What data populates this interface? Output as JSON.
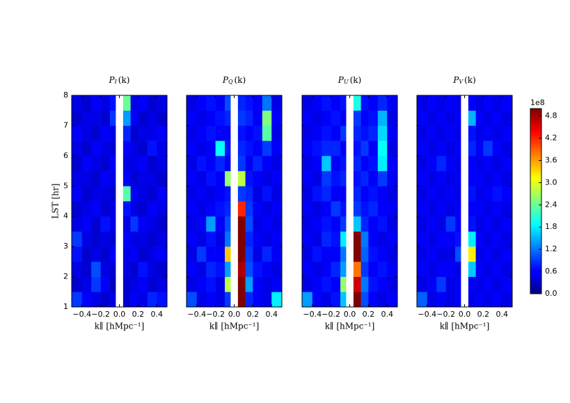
{
  "chart_data": {
    "type": "heatmap",
    "ylabel": "LST [hr]",
    "xlabel": "k∥ [hMpc⁻¹]",
    "colormap": "jet",
    "xlim": [
      -0.51,
      0.51
    ],
    "xticks": [
      {
        "value": -0.4,
        "label": "−0.4"
      },
      {
        "value": -0.2,
        "label": "−0.2"
      },
      {
        "value": 0,
        "label": "0.0"
      },
      0.2,
      0.4
    ],
    "ylim": [
      1,
      8
    ],
    "yticks": [
      1,
      2,
      3,
      4,
      5,
      6,
      7,
      8
    ],
    "xbins": [
      -0.51,
      -0.4,
      -0.3,
      -0.2,
      -0.1,
      -0.04,
      0.04,
      0.12,
      0.2,
      0.3,
      0.4,
      0.51
    ],
    "ybins": [
      1,
      1.5,
      2,
      2.5,
      3,
      3.5,
      4,
      4.5,
      5,
      5.5,
      6,
      6.5,
      7,
      7.5,
      8
    ],
    "zlim": [
      0,
      5.0
    ],
    "zticks": [
      {
        "value": 0,
        "label": "0.0"
      },
      0.6,
      1.2,
      1.8,
      2.4,
      {
        "value": 3,
        "label": "3.0"
      },
      3.6,
      4.2,
      4.8
    ],
    "z_offset_label": "1e8",
    "panels": [
      {
        "title": {
          "symbol": "P",
          "subscript": "I",
          "arg": "(k)"
        },
        "z": [
          [
            0.9,
            0.6,
            0.5,
            0.4,
            0.5,
            null,
            0.4,
            0.6,
            0.5,
            0.8,
            0.7
          ],
          [
            0.4,
            0.5,
            0.9,
            0.6,
            0.3,
            null,
            0.4,
            0.5,
            0.6,
            0.4,
            0.5
          ],
          [
            0.5,
            0.4,
            1.0,
            0.5,
            0.4,
            null,
            0.5,
            0.4,
            0.7,
            0.5,
            0.4
          ],
          [
            0.7,
            0.4,
            0.5,
            0.4,
            0.6,
            null,
            0.5,
            0.6,
            0.4,
            0.5,
            0.6
          ],
          [
            0.9,
            0.5,
            0.4,
            0.5,
            0.4,
            null,
            0.6,
            0.5,
            0.5,
            0.4,
            0.5
          ],
          [
            0.5,
            0.6,
            0.4,
            0.7,
            0.5,
            null,
            0.5,
            0.9,
            0.6,
            0.5,
            0.4
          ],
          [
            0.4,
            0.5,
            0.6,
            0.4,
            0.5,
            null,
            0.7,
            0.5,
            0.4,
            0.6,
            0.5
          ],
          [
            0.6,
            0.4,
            0.5,
            0.5,
            0.4,
            null,
            2.3,
            0.6,
            0.5,
            0.4,
            0.6
          ],
          [
            0.5,
            0.5,
            0.4,
            0.6,
            0.5,
            null,
            0.6,
            0.4,
            0.5,
            0.5,
            0.4
          ],
          [
            0.4,
            0.6,
            0.5,
            0.4,
            0.6,
            null,
            0.5,
            0.5,
            0.6,
            0.4,
            0.5
          ],
          [
            0.5,
            0.4,
            0.6,
            0.5,
            0.4,
            null,
            0.6,
            0.5,
            0.4,
            0.7,
            0.5
          ],
          [
            0.6,
            0.5,
            0.4,
            0.6,
            0.5,
            null,
            0.8,
            0.4,
            0.5,
            0.5,
            0.6
          ],
          [
            0.4,
            0.5,
            0.5,
            0.4,
            0.9,
            null,
            1.4,
            0.6,
            0.4,
            0.5,
            0.4
          ],
          [
            0.5,
            0.4,
            0.6,
            0.5,
            0.7,
            null,
            2.4,
            0.5,
            0.6,
            0.4,
            0.5
          ]
        ]
      },
      {
        "title": {
          "symbol": "P",
          "subscript": "Q",
          "arg": "(k)"
        },
        "z": [
          [
            1.0,
            0.5,
            0.6,
            0.5,
            0.9,
            null,
            5.0,
            0.8,
            0.6,
            0.5,
            1.8
          ],
          [
            0.5,
            0.6,
            0.7,
            0.5,
            2.8,
            null,
            5.0,
            1.4,
            0.6,
            0.5,
            0.6
          ],
          [
            0.6,
            0.5,
            0.8,
            0.7,
            1.4,
            null,
            4.8,
            1.0,
            0.7,
            0.6,
            0.5
          ],
          [
            0.5,
            0.9,
            0.6,
            0.6,
            3.4,
            null,
            5.0,
            0.9,
            0.5,
            0.8,
            0.6
          ],
          [
            0.6,
            0.5,
            0.7,
            0.5,
            1.2,
            null,
            5.0,
            0.8,
            0.6,
            0.5,
            0.6
          ],
          [
            0.5,
            0.6,
            1.4,
            0.6,
            1.0,
            null,
            5.0,
            1.0,
            0.5,
            0.6,
            0.5
          ],
          [
            0.6,
            0.5,
            0.6,
            0.7,
            0.8,
            null,
            4.2,
            0.9,
            0.6,
            0.5,
            0.6
          ],
          [
            0.5,
            0.6,
            0.5,
            0.6,
            0.7,
            null,
            0.9,
            0.8,
            0.5,
            0.7,
            0.5
          ],
          [
            0.6,
            0.5,
            0.7,
            0.6,
            2.6,
            null,
            2.8,
            0.7,
            0.6,
            0.5,
            0.6
          ],
          [
            0.5,
            0.7,
            0.6,
            0.8,
            0.6,
            null,
            0.9,
            0.6,
            0.8,
            0.6,
            0.5
          ],
          [
            0.6,
            0.5,
            0.6,
            1.9,
            0.7,
            null,
            0.8,
            0.7,
            0.6,
            0.9,
            0.6
          ],
          [
            0.5,
            0.6,
            0.7,
            0.6,
            0.6,
            null,
            0.7,
            0.6,
            0.7,
            2.3,
            0.5
          ],
          [
            0.6,
            0.5,
            0.6,
            0.7,
            0.8,
            null,
            0.9,
            0.8,
            0.6,
            2.5,
            0.6
          ],
          [
            0.5,
            0.6,
            0.7,
            0.6,
            1.0,
            null,
            0.8,
            0.7,
            0.6,
            1.2,
            0.5
          ]
        ]
      },
      {
        "title": {
          "symbol": "P",
          "subscript": "U",
          "arg": "(k)"
        },
        "z": [
          [
            1.4,
            0.6,
            0.5,
            0.7,
            1.6,
            null,
            5.0,
            1.0,
            0.6,
            0.5,
            0.6
          ],
          [
            0.5,
            0.6,
            0.7,
            0.6,
            2.6,
            null,
            4.6,
            1.2,
            0.7,
            0.6,
            0.5
          ],
          [
            0.6,
            0.5,
            0.6,
            0.8,
            1.4,
            null,
            3.8,
            0.9,
            0.6,
            0.7,
            0.6
          ],
          [
            0.5,
            0.7,
            0.6,
            0.6,
            1.2,
            null,
            5.0,
            1.1,
            0.7,
            0.6,
            0.5
          ],
          [
            0.6,
            0.5,
            0.8,
            0.7,
            1.8,
            null,
            5.0,
            1.2,
            0.6,
            0.5,
            0.6
          ],
          [
            0.5,
            0.6,
            0.7,
            0.6,
            0.9,
            null,
            1.6,
            0.8,
            0.6,
            0.7,
            0.5
          ],
          [
            0.6,
            0.5,
            0.6,
            0.9,
            0.7,
            null,
            0.9,
            0.7,
            0.8,
            0.6,
            0.6
          ],
          [
            0.5,
            0.7,
            0.8,
            0.6,
            0.6,
            null,
            0.8,
            0.6,
            0.7,
            0.6,
            0.5
          ],
          [
            0.6,
            0.5,
            0.9,
            0.7,
            0.8,
            null,
            0.7,
            0.8,
            0.6,
            0.9,
            0.6
          ],
          [
            0.5,
            0.6,
            1.6,
            0.6,
            0.7,
            null,
            0.8,
            0.6,
            0.7,
            1.8,
            0.6
          ],
          [
            0.6,
            0.7,
            0.8,
            0.8,
            0.6,
            null,
            0.7,
            0.9,
            0.6,
            1.9,
            0.5
          ],
          [
            0.5,
            0.6,
            0.7,
            0.6,
            0.9,
            null,
            0.8,
            0.7,
            0.8,
            1.7,
            0.6
          ],
          [
            0.6,
            0.5,
            0.6,
            0.7,
            0.6,
            null,
            0.9,
            0.6,
            0.7,
            1.5,
            0.5
          ],
          [
            0.5,
            0.6,
            0.7,
            0.6,
            0.7,
            null,
            2.0,
            0.7,
            0.6,
            0.8,
            0.6
          ]
        ]
      },
      {
        "title": {
          "symbol": "P",
          "subscript": "V",
          "arg": "(k)"
        },
        "z": [
          [
            1.1,
            0.5,
            0.6,
            0.5,
            0.6,
            null,
            0.5,
            0.6,
            0.5,
            0.6,
            0.5
          ],
          [
            0.5,
            0.6,
            0.9,
            0.5,
            0.6,
            null,
            0.6,
            0.5,
            0.6,
            0.5,
            0.6
          ],
          [
            0.6,
            0.5,
            0.6,
            0.6,
            0.5,
            null,
            1.6,
            0.6,
            0.5,
            0.6,
            0.5
          ],
          [
            0.5,
            0.6,
            0.5,
            0.5,
            1.0,
            null,
            3.2,
            0.5,
            0.6,
            0.5,
            0.6
          ],
          [
            0.6,
            0.5,
            0.6,
            0.6,
            0.7,
            null,
            1.8,
            0.6,
            0.5,
            0.6,
            0.5
          ],
          [
            0.5,
            0.6,
            0.5,
            0.9,
            0.6,
            null,
            0.7,
            0.5,
            0.6,
            0.5,
            0.6
          ],
          [
            0.6,
            0.5,
            0.6,
            0.5,
            0.6,
            null,
            0.6,
            0.6,
            0.5,
            0.6,
            0.5
          ],
          [
            0.5,
            0.6,
            0.5,
            0.6,
            0.5,
            null,
            0.7,
            0.5,
            0.6,
            0.7,
            0.6
          ],
          [
            0.6,
            0.5,
            0.6,
            0.5,
            0.6,
            null,
            0.6,
            0.6,
            0.5,
            0.6,
            0.5
          ],
          [
            0.5,
            0.6,
            0.8,
            0.6,
            0.5,
            null,
            0.6,
            0.5,
            0.6,
            0.5,
            0.6
          ],
          [
            0.6,
            0.5,
            0.6,
            0.5,
            0.6,
            null,
            0.8,
            0.6,
            0.9,
            0.6,
            0.5
          ],
          [
            0.5,
            0.6,
            0.5,
            0.6,
            0.5,
            null,
            0.7,
            0.5,
            0.6,
            0.5,
            0.6
          ],
          [
            0.6,
            0.5,
            0.6,
            0.5,
            0.6,
            null,
            1.5,
            0.6,
            0.5,
            0.6,
            0.5
          ],
          [
            0.5,
            0.6,
            0.5,
            0.6,
            0.5,
            null,
            0.6,
            0.5,
            0.6,
            0.5,
            0.6
          ]
        ]
      }
    ]
  }
}
